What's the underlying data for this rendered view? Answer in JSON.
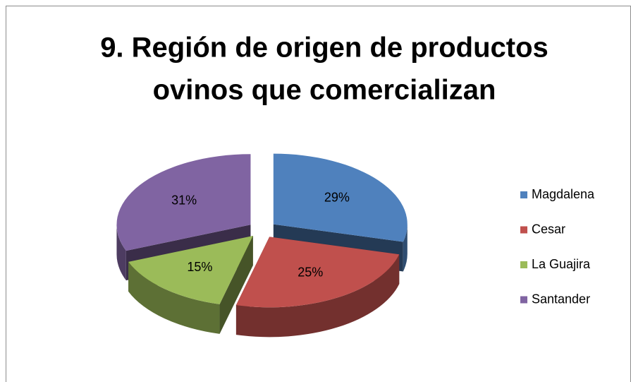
{
  "chart_data": {
    "type": "pie",
    "title": [
      "9. Región de origen de productos",
      "ovinos que comercializan"
    ],
    "categories": [
      "Magdalena",
      "Cesar",
      "La Guajira",
      "Santander"
    ],
    "values": [
      29,
      25,
      15,
      31
    ],
    "value_labels": [
      "29%",
      "25%",
      "15%",
      "31%"
    ],
    "colors": [
      "#4f81bd",
      "#c0504d",
      "#9bbb59",
      "#8064a2"
    ],
    "legend": "right"
  }
}
